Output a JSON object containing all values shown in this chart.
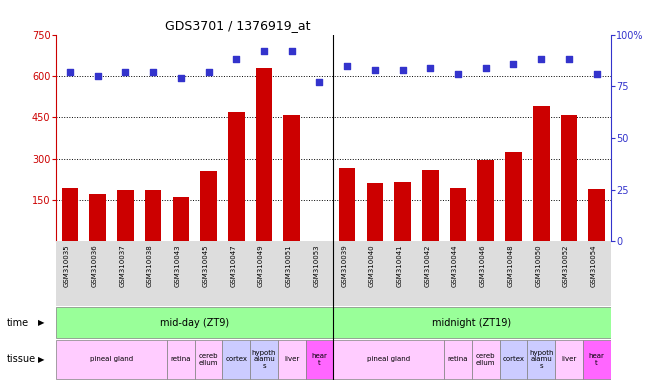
{
  "title": "GDS3701 / 1376919_at",
  "samples": [
    "GSM310035",
    "GSM310036",
    "GSM310037",
    "GSM310038",
    "GSM310043",
    "GSM310045",
    "GSM310047",
    "GSM310049",
    "GSM310051",
    "GSM310053",
    "GSM310039",
    "GSM310040",
    "GSM310041",
    "GSM310042",
    "GSM310044",
    "GSM310046",
    "GSM310048",
    "GSM310050",
    "GSM310052",
    "GSM310054"
  ],
  "counts": [
    195,
    170,
    185,
    185,
    160,
    255,
    470,
    630,
    460,
    2,
    265,
    210,
    215,
    260,
    195,
    295,
    325,
    490,
    460,
    190
  ],
  "percentiles": [
    82,
    80,
    82,
    82,
    79,
    82,
    88,
    92,
    92,
    77,
    85,
    83,
    83,
    84,
    81,
    84,
    86,
    88,
    88,
    81
  ],
  "ylim_left": [
    0,
    750
  ],
  "ylim_right": [
    0,
    100
  ],
  "yticks_left": [
    150,
    300,
    450,
    600,
    750
  ],
  "yticks_right": [
    0,
    25,
    50,
    75,
    100
  ],
  "bar_color": "#cc0000",
  "dot_color": "#3333cc",
  "bg_color": "#ffffff",
  "grid_color": "#000000",
  "n_samples": 20,
  "time_groups": [
    {
      "label": "mid-day (ZT9)",
      "start": 0,
      "end": 10,
      "color": "#99ff99"
    },
    {
      "label": "midnight (ZT19)",
      "start": 10,
      "end": 20,
      "color": "#99ff99"
    }
  ],
  "tissue_groups": [
    {
      "label": "pineal gland",
      "start": 0,
      "end": 4,
      "color": "#ffccff"
    },
    {
      "label": "retina",
      "start": 4,
      "end": 5,
      "color": "#ffccff"
    },
    {
      "label": "cerebellum",
      "start": 5,
      "end": 6,
      "color": "#ffccff"
    },
    {
      "label": "cortex",
      "start": 6,
      "end": 7,
      "color": "#ccccff"
    },
    {
      "label": "hypothalamus",
      "start": 7,
      "end": 8,
      "color": "#ccccff"
    },
    {
      "label": "liver",
      "start": 8,
      "end": 9,
      "color": "#ffccff"
    },
    {
      "label": "heart",
      "start": 9,
      "end": 10,
      "color": "#ff66ff"
    },
    {
      "label": "pineal gland",
      "start": 10,
      "end": 14,
      "color": "#ffccff"
    },
    {
      "label": "retina",
      "start": 14,
      "end": 15,
      "color": "#ffccff"
    },
    {
      "label": "cerebellum",
      "start": 15,
      "end": 16,
      "color": "#ffccff"
    },
    {
      "label": "cortex",
      "start": 16,
      "end": 17,
      "color": "#ccccff"
    },
    {
      "label": "hypothalamus",
      "start": 17,
      "end": 18,
      "color": "#ccccff"
    },
    {
      "label": "liver",
      "start": 18,
      "end": 19,
      "color": "#ffccff"
    },
    {
      "label": "heart",
      "start": 19,
      "end": 20,
      "color": "#ff66ff"
    }
  ],
  "tissue_label_wrap": {
    "pineal gland": "pineal gland",
    "retina": "retina",
    "cerebellum": "cereb\nellum",
    "cortex": "cortex",
    "hypothalamus": "hypoth\nalamu\ns",
    "liver": "liver",
    "heart": "hear\nt"
  },
  "xticklabel_bg": "#dddddd"
}
